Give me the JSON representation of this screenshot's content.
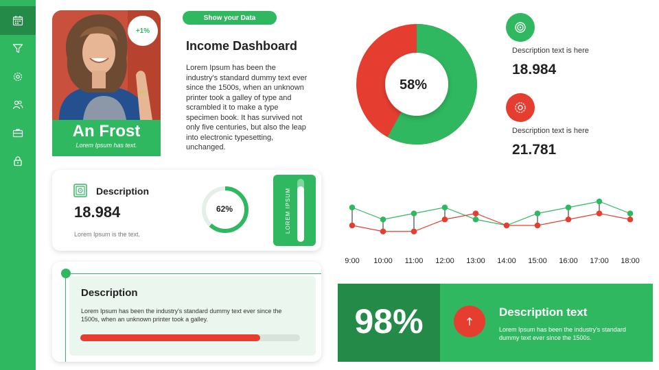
{
  "sidebar": {
    "items": [
      {
        "icon": "calendar-icon",
        "active": true
      },
      {
        "icon": "filter-icon",
        "active": false
      },
      {
        "icon": "settings-icon",
        "active": false
      },
      {
        "icon": "users-icon",
        "active": false
      },
      {
        "icon": "briefcase-icon",
        "active": false
      },
      {
        "icon": "lock-icon",
        "active": false
      }
    ]
  },
  "profile": {
    "badge": "+1%",
    "name": "An Frost",
    "subtitle": "Lorem Ipsum has text."
  },
  "header": {
    "pill": "Show your Data",
    "title": "Income Dashboard",
    "body": "Lorem Ipsum has been the industry's standard dummy text ever since the 1500s, when an unknown printer took a galley of type and scrambled it to make a type specimen book. It has survived not only five centuries, but also the leap into electronic typesetting, unchanged."
  },
  "card1": {
    "title": "Description",
    "value": "18.984",
    "note": "Lorem Ipsum is the text.",
    "ring_label": "62%",
    "ring_value": 0.62,
    "vertical_label": "LOREM IPSUM",
    "vertical_fill": 0.88
  },
  "card2": {
    "title": "Description",
    "text": "Lorem Ipsum has been the industry's standard dummy text ever since the 1500s, when an unknown printer took a galley.",
    "progress": 0.82
  },
  "donut": {
    "label": "58%",
    "value": 0.58
  },
  "stats": [
    {
      "icon": "target-icon",
      "color": "#2fb85f",
      "desc": "Description text is here",
      "value": "18.984"
    },
    {
      "icon": "gear-badge-icon",
      "color": "#e53e30",
      "desc": "Description text is here",
      "value": "21.781"
    }
  ],
  "chart_data": {
    "type": "line",
    "categories": [
      "9:00",
      "10:00",
      "11:00",
      "12:00",
      "13:00",
      "14:00",
      "15:00",
      "16:00",
      "17:00",
      "18:00"
    ],
    "series": [
      {
        "color": "#2fb85f",
        "values": [
          7,
          5,
          6,
          7,
          5,
          4,
          6,
          7,
          8,
          6
        ]
      },
      {
        "color": "#e53e30",
        "values": [
          4,
          3,
          3,
          5,
          6,
          4,
          4,
          5,
          6,
          5
        ]
      }
    ],
    "grid": false,
    "legend": "none",
    "ylim": [
      0,
      10
    ]
  },
  "banner": {
    "percent": "98%",
    "title": "Description text",
    "text": "Lorem Ipsum has been the industry's standard dummy text ever since the 1500s."
  },
  "colors": {
    "green": "#2fb85f",
    "dark_green": "#238a47",
    "red": "#e53e30"
  }
}
